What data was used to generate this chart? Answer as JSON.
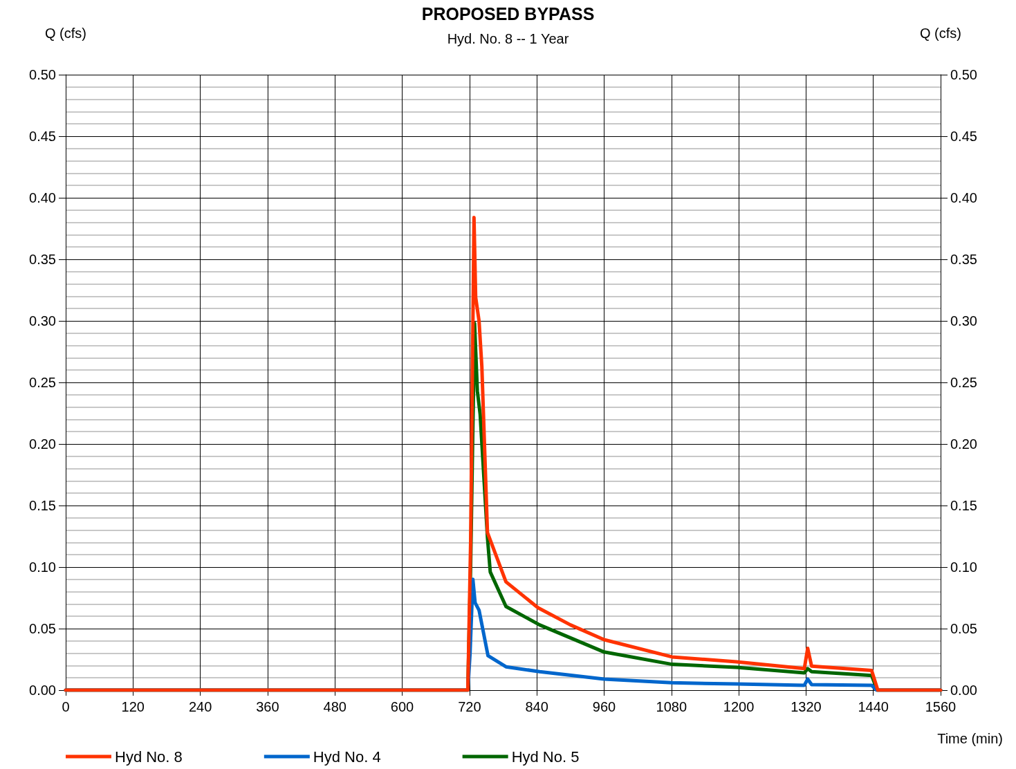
{
  "chart_data": {
    "type": "line",
    "title": "PROPOSED BYPASS",
    "subtitle": "Hyd. No. 8 -- 1 Year",
    "xlabel": "Time (min)",
    "ylabel": "Q (cfs)",
    "y2label": "Q (cfs)",
    "xlim": [
      0,
      1560
    ],
    "xticks": [
      0,
      120,
      240,
      360,
      480,
      600,
      720,
      840,
      960,
      1080,
      1200,
      1320,
      1440,
      1560
    ],
    "ylim": [
      0,
      0.5
    ],
    "yticks": [
      {
        "value": 0,
        "label": "0.00"
      },
      {
        "value": 0.05,
        "label": "0.05"
      },
      {
        "value": 0.1,
        "label": "0.10"
      },
      {
        "value": 0.15,
        "label": "0.15"
      },
      {
        "value": 0.2,
        "label": "0.20"
      },
      {
        "value": 0.25,
        "label": "0.25"
      },
      {
        "value": 0.3,
        "label": "0.30"
      },
      {
        "value": 0.35,
        "label": "0.35"
      },
      {
        "value": 0.4,
        "label": "0.40"
      },
      {
        "value": 0.45,
        "label": "0.45"
      },
      {
        "value": 0.5,
        "label": "0.50"
      }
    ],
    "y2lim": [
      0,
      0.5
    ],
    "y2ticks": [
      {
        "value": 0,
        "label": "0.00"
      },
      {
        "value": 0.05,
        "label": "0.05"
      },
      {
        "value": 0.1,
        "label": "0.10"
      },
      {
        "value": 0.15,
        "label": "0.15"
      },
      {
        "value": 0.2,
        "label": "0.20"
      },
      {
        "value": 0.25,
        "label": "0.25"
      },
      {
        "value": 0.3,
        "label": "0.30"
      },
      {
        "value": 0.35,
        "label": "0.35"
      },
      {
        "value": 0.4,
        "label": "0.40"
      },
      {
        "value": 0.45,
        "label": "0.45"
      },
      {
        "value": 0.5,
        "label": "0.50"
      }
    ],
    "grid": true,
    "legend": "bottom left",
    "marker": "none",
    "line_style": "solid",
    "series": [
      {
        "name": "Hyd No. 8",
        "color": "#ff3300",
        "x": [
          0,
          717,
          722,
          728,
          731,
          737,
          742,
          752,
          785,
          842,
          900,
          960,
          1081,
          1196,
          1317,
          1323,
          1330,
          1437,
          1448,
          1560
        ],
        "values": [
          0,
          0,
          0.12,
          0.384,
          0.319,
          0.3,
          0.263,
          0.128,
          0.088,
          0.067,
          0.053,
          0.041,
          0.027,
          0.023,
          0.0175,
          0.034,
          0.0195,
          0.016,
          0,
          0
        ]
      },
      {
        "name": "Hyd No. 4",
        "color": "#0066cc",
        "x": [
          0,
          717,
          721,
          726,
          730,
          737,
          753,
          785,
          845,
          960,
          1081,
          1196,
          1317,
          1323,
          1330,
          1437,
          1446,
          1560
        ],
        "values": [
          0,
          0,
          0.03,
          0.09,
          0.071,
          0.065,
          0.028,
          0.019,
          0.015,
          0.009,
          0.006,
          0.005,
          0.004,
          0.009,
          0.0045,
          0.004,
          0,
          0
        ]
      },
      {
        "name": "Hyd No. 5",
        "color": "#006600",
        "x": [
          0,
          717,
          722,
          729,
          734,
          739,
          752,
          757,
          785,
          845,
          960,
          1081,
          1196,
          1317,
          1323,
          1330,
          1437,
          1447,
          1560
        ],
        "values": [
          0,
          0,
          0.1,
          0.298,
          0.243,
          0.224,
          0.124,
          0.096,
          0.068,
          0.053,
          0.031,
          0.021,
          0.0185,
          0.014,
          0.0175,
          0.015,
          0.012,
          0,
          0
        ]
      }
    ]
  }
}
